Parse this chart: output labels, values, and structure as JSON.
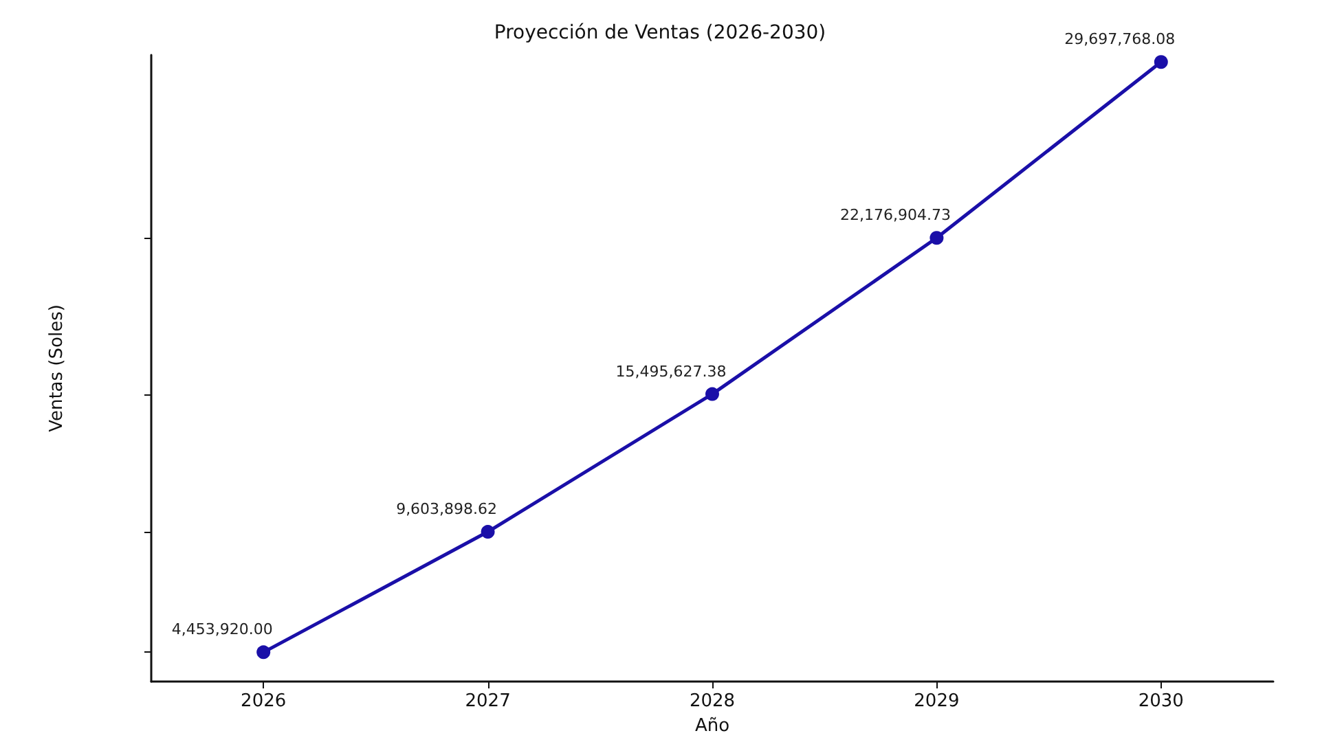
{
  "chart_data": {
    "type": "line",
    "title": "Proyección de Ventas (2026-2030)",
    "xlabel": "Año",
    "ylabel": "Ventas (Soles)",
    "categories": [
      "2026",
      "2027",
      "2028",
      "2029",
      "2030"
    ],
    "series": [
      {
        "color": "#1a0fa8",
        "values": [
          4453920.0,
          9603898.62,
          15495627.38,
          22176904.73,
          29697768.08
        ],
        "value_labels": [
          "4,453,920.00",
          "9,603,898.62",
          "15,495,627.38",
          "22,176,904.73",
          "29,697,768.08"
        ]
      }
    ],
    "ylim": [
      3200000,
      30000000
    ],
    "yticks": [
      {
        "value": 4453920,
        "label": null
      },
      {
        "value": 9603898.62,
        "label": null
      },
      {
        "value": 15495627.38,
        "label": null
      },
      {
        "value": 22176904.73,
        "label": null
      }
    ],
    "tick_labels": "x",
    "grid": false,
    "marker": "circle",
    "line_style": "solid"
  }
}
